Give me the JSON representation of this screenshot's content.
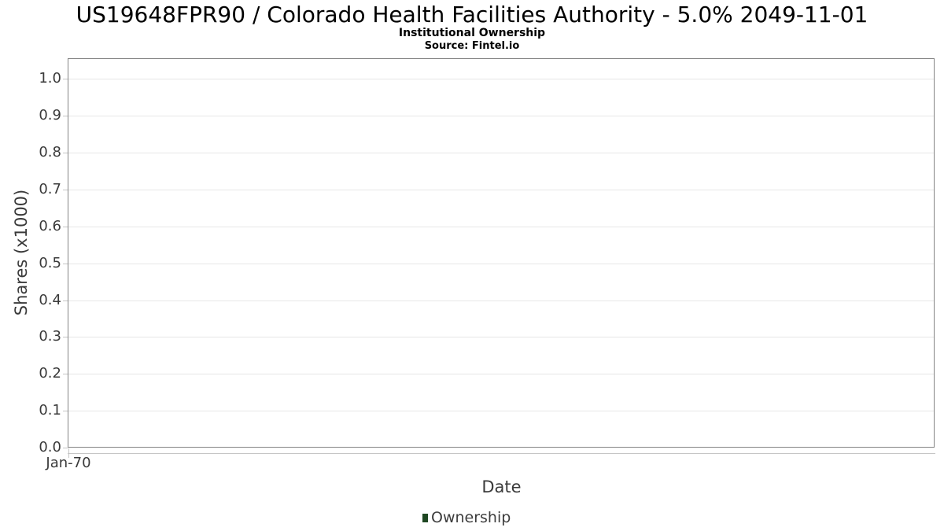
{
  "chart_data": {
    "type": "line",
    "title": "US19648FPR90 / Colorado Health Facilities Authority - 5.0% 2049-11-01",
    "subtitle": "Institutional Ownership",
    "source": "Source: Fintel.io",
    "xlabel": "Date",
    "ylabel": "Shares (x1000)",
    "x_ticks": [
      "Jan-70"
    ],
    "y_ticks": [
      "0.0",
      "0.1",
      "0.2",
      "0.3",
      "0.4",
      "0.5",
      "0.6",
      "0.7",
      "0.8",
      "0.9",
      "1.0"
    ],
    "ylim": [
      0,
      1.056
    ],
    "grid": true,
    "legend_position": "bottom",
    "series": [
      {
        "name": "Ownership",
        "color": "#1e4722",
        "x": [],
        "values": []
      }
    ]
  },
  "colors": {
    "plot_border": "#848484",
    "gridline": "#e7e7e7",
    "tick": "#c6c6c6",
    "axis_text": "#3a3a3a",
    "title_text": "#000000",
    "legend_marker": "#1e4722"
  }
}
